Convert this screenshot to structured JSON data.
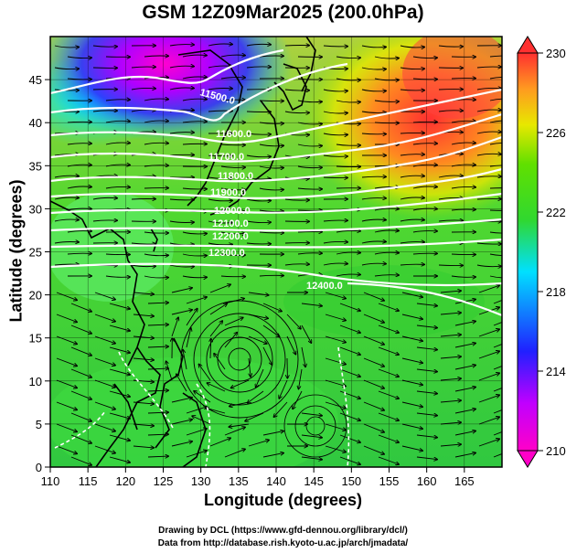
{
  "title": "GSM 12Z09Mar2025 (200.0hPa)",
  "x_axis": {
    "label": "Longitude (degrees)",
    "ticks": [
      "110",
      "115",
      "120",
      "125",
      "130",
      "135",
      "140",
      "145",
      "150",
      "155",
      "160",
      "165"
    ]
  },
  "y_axis": {
    "label": "Latitude  (degrees)",
    "ticks": [
      "0",
      "5",
      "10",
      "15",
      "20",
      "25",
      "30",
      "35",
      "40",
      "45"
    ]
  },
  "colorbar": {
    "ticks": [
      "210",
      "214",
      "218",
      "222",
      "226",
      "230"
    ]
  },
  "contour_labels": [
    "11500.0",
    "11600.0",
    "11700.0",
    "11800.0",
    "11900.0",
    "12000.0",
    "12100.0",
    "12200.0",
    "12300.0",
    "12400.0"
  ],
  "credits": {
    "line1": "Drawing by DCL (https://www.gfd-dennou.org/library/dcl/)",
    "line2": "Data from http://database.rish.kyoto-u.ac.jp/arch/jmadata/"
  },
  "colors": {
    "magenta": "#ff00c8",
    "blue": "#2020ff",
    "cyan": "#00e0ff",
    "green": "#30d830",
    "yellow": "#e8e800",
    "orange": "#ff9a20",
    "red": "#ff3030"
  },
  "chart_data": {
    "type": "heatmap",
    "title": "GSM 12Z09Mar2025 (200.0hPa)",
    "xlabel": "Longitude (degrees)",
    "ylabel": "Latitude  (degrees)",
    "xlim": [
      110,
      170
    ],
    "ylim": [
      0,
      50
    ],
    "colorbar_range": [
      210,
      230
    ],
    "contour_levels": [
      11500,
      11600,
      11700,
      11800,
      11900,
      12000,
      12100,
      12200,
      12300,
      12400
    ],
    "grid": true
  }
}
